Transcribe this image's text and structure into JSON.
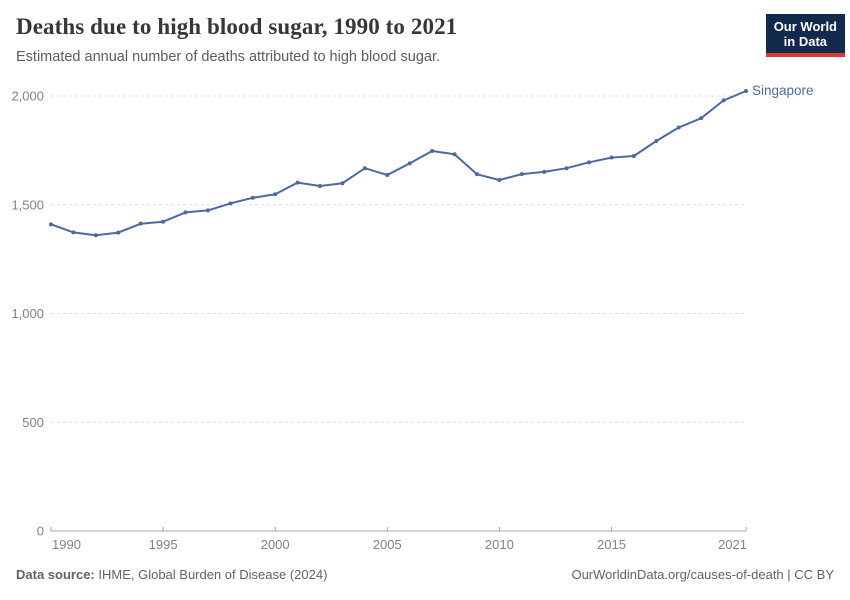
{
  "header": {
    "title": "Deaths due to high blood sugar, 1990 to 2021",
    "subtitle": "Estimated annual number of deaths attributed to high blood sugar.",
    "logo": {
      "line1": "Our World",
      "line2": "in Data",
      "bg_color": "#12294b",
      "accent_color": "#d93a34"
    }
  },
  "chart_data": {
    "type": "line",
    "title": "Deaths due to high blood sugar, 1990 to 2021",
    "xlabel": "",
    "ylabel": "",
    "xlim": [
      1990,
      2021
    ],
    "ylim": [
      0,
      2000
    ],
    "x_ticks": [
      1990,
      1995,
      2000,
      2005,
      2010,
      2015,
      2021
    ],
    "y_ticks": [
      0,
      500,
      1000,
      1500,
      2000
    ],
    "grid": "horizontal-dashed",
    "legend_position": "end-of-line-label",
    "series": [
      {
        "name": "Singapore",
        "color": "#4C6A9D",
        "x": [
          1990,
          1991,
          1992,
          1993,
          1994,
          1995,
          1996,
          1997,
          1998,
          1999,
          2000,
          2001,
          2002,
          2003,
          2004,
          2005,
          2006,
          2007,
          2008,
          2009,
          2010,
          2011,
          2012,
          2013,
          2014,
          2015,
          2016,
          2017,
          2018,
          2019,
          2020,
          2021
        ],
        "values": [
          1410,
          1373,
          1360,
          1372,
          1413,
          1422,
          1465,
          1474,
          1506,
          1532,
          1548,
          1602,
          1586,
          1599,
          1668,
          1637,
          1690,
          1747,
          1732,
          1640,
          1614,
          1641,
          1651,
          1668,
          1695,
          1717,
          1724,
          1793,
          1855,
          1898,
          1980,
          2023
        ]
      }
    ],
    "style": {
      "grid_color": "#dedede",
      "axis_color": "#a8a8a8",
      "tick_label_color": "#838383"
    }
  },
  "footer": {
    "source_label": "Data source:",
    "source_text": " IHME, Global Burden of Disease (2024)",
    "credit": "OurWorldinData.org/causes-of-death | CC BY"
  }
}
